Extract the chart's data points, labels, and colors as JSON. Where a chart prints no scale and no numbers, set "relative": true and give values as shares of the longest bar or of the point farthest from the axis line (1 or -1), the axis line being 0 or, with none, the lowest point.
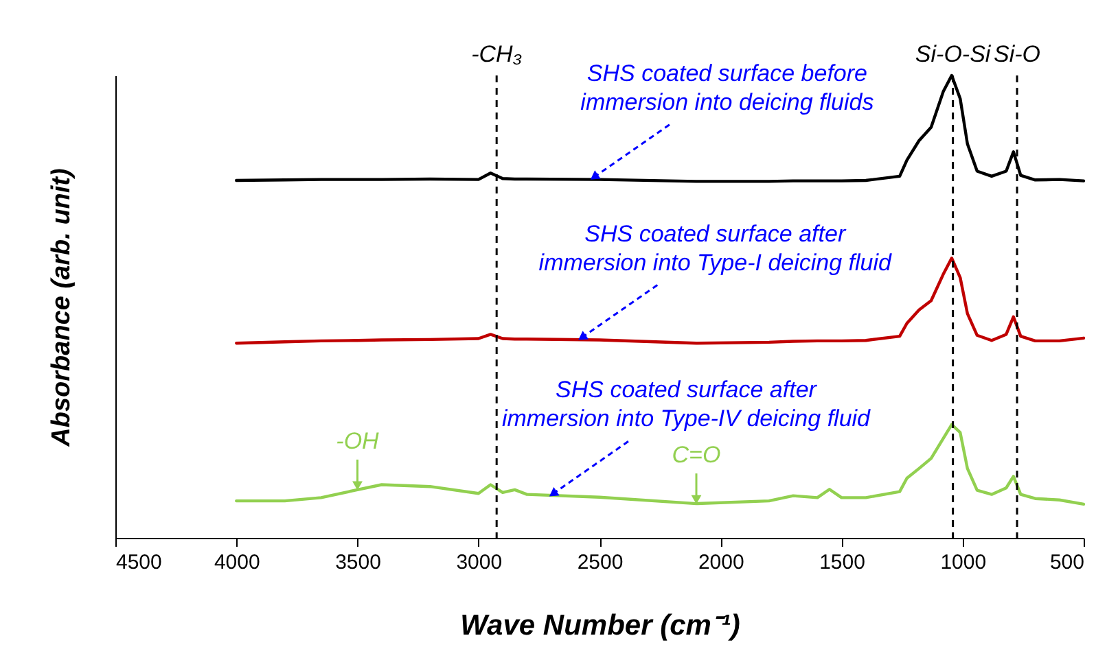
{
  "chart_data": {
    "type": "line",
    "relative": true,
    "xlabel": "Wave Number (cm⁻¹)",
    "ylabel": "Absorbance (arb. unit)",
    "xlim": [
      4500,
      500
    ],
    "xticks": [
      4500,
      4000,
      3500,
      3000,
      2500,
      2000,
      1500,
      1000,
      500
    ],
    "x": [
      4000,
      3800,
      3650,
      3500,
      3400,
      3200,
      3000,
      2950,
      2900,
      2850,
      2800,
      2500,
      2100,
      1800,
      1700,
      1600,
      1550,
      1500,
      1400,
      1260,
      1230,
      1180,
      1130,
      1080,
      1045,
      1010,
      980,
      940,
      880,
      820,
      790,
      760,
      700,
      600,
      500
    ],
    "series": [
      {
        "color": "#000000",
        "values": [
          0.773,
          0.774,
          0.775,
          0.775,
          0.775,
          0.776,
          0.775,
          0.789,
          0.777,
          0.776,
          0.776,
          0.775,
          0.771,
          0.771,
          0.772,
          0.772,
          0.772,
          0.772,
          0.773,
          0.782,
          0.817,
          0.859,
          0.888,
          0.965,
          1.0,
          0.95,
          0.852,
          0.793,
          0.782,
          0.793,
          0.835,
          0.784,
          0.774,
          0.775,
          0.772
        ]
      },
      {
        "color": "#c00000",
        "values": [
          0.421,
          0.424,
          0.426,
          0.427,
          0.428,
          0.429,
          0.431,
          0.44,
          0.431,
          0.43,
          0.43,
          0.428,
          0.421,
          0.423,
          0.425,
          0.426,
          0.426,
          0.426,
          0.427,
          0.436,
          0.464,
          0.493,
          0.513,
          0.57,
          0.605,
          0.563,
          0.485,
          0.438,
          0.427,
          0.44,
          0.478,
          0.436,
          0.426,
          0.426,
          0.432
        ]
      },
      {
        "color": "#92d050",
        "values": [
          0.08,
          0.08,
          0.087,
          0.104,
          0.115,
          0.111,
          0.096,
          0.115,
          0.098,
          0.104,
          0.094,
          0.088,
          0.074,
          0.08,
          0.091,
          0.087,
          0.105,
          0.087,
          0.087,
          0.1,
          0.129,
          0.15,
          0.172,
          0.215,
          0.245,
          0.228,
          0.15,
          0.103,
          0.094,
          0.108,
          0.133,
          0.094,
          0.085,
          0.082,
          0.073
        ]
      }
    ],
    "ref_lines": [
      {
        "axis": "x",
        "value": 2925,
        "label": "-CH₃",
        "color": "#000000",
        "line_style": "dashed"
      },
      {
        "axis": "x",
        "value": 1040,
        "label": "Si-O-Si",
        "color": "#000000",
        "line_style": "dashed"
      },
      {
        "axis": "x",
        "value": 775,
        "label": "Si-O",
        "color": "#000000",
        "line_style": "dashed"
      }
    ],
    "annotations": [
      {
        "text": "-OH",
        "x": 3500,
        "y": 0.104
      },
      {
        "text": "C=O",
        "x": 2100,
        "y": 0.074
      },
      {
        "text": "SHS coated surface before\nimmersion into deicing fluids",
        "x": 2540,
        "y": 0.775
      },
      {
        "text": "SHS coated surface after\nimmersion into Type-I deicing fluid",
        "x": 2590,
        "y": 0.428
      },
      {
        "text": "SHS coated surface after\nimmersion into Type-IV deicing fluid",
        "x": 2710,
        "y": 0.09
      }
    ]
  }
}
